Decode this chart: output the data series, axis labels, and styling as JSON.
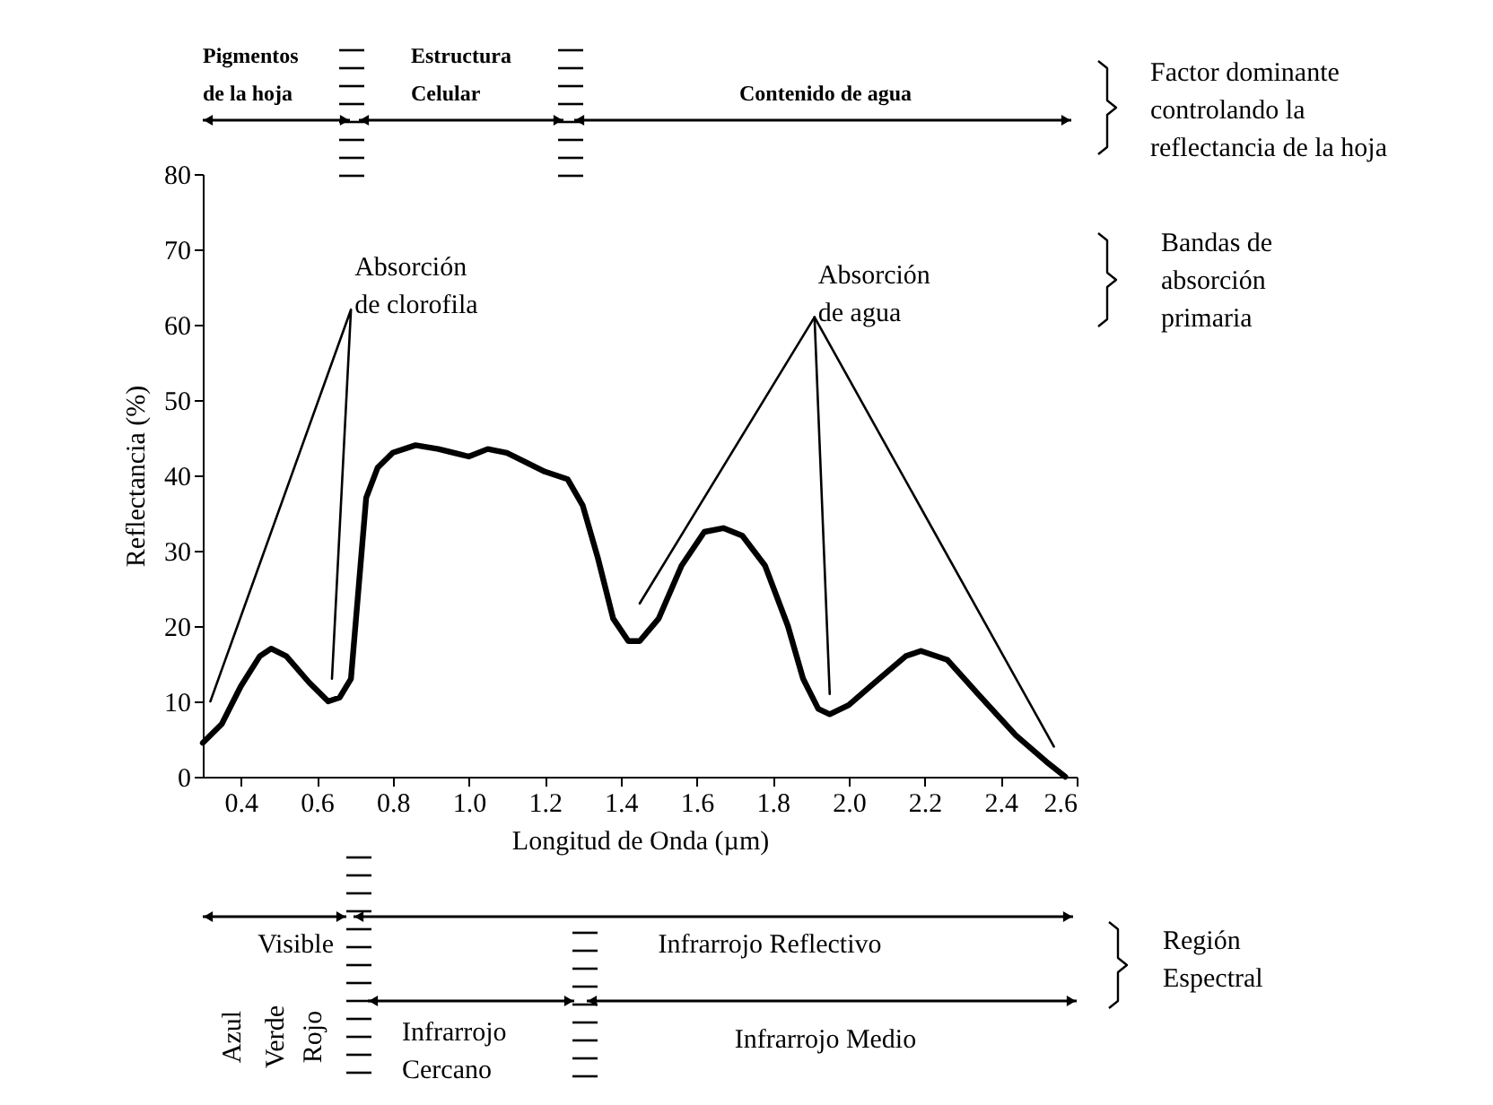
{
  "chart_data": {
    "type": "line",
    "xlabel": "Longitud de Onda (µm)",
    "ylabel": "Reflectancia (%)",
    "xlim": [
      0.3,
      2.6
    ],
    "xticks": [
      0.4,
      0.6,
      0.8,
      {
        "value": 1,
        "label": "1.0"
      },
      1.2,
      1.4,
      1.6,
      1.8,
      {
        "value": 2,
        "label": "2.0"
      },
      2.2,
      2.4,
      2.6
    ],
    "ylim": [
      0,
      80
    ],
    "yticks": [
      0,
      10,
      20,
      30,
      40,
      50,
      60,
      70,
      80
    ],
    "grid": false,
    "series": [
      {
        "color": "#000000",
        "x": [
          0.3,
          0.35,
          0.4,
          0.45,
          0.48,
          0.52,
          0.58,
          0.63,
          0.66,
          0.69,
          0.71,
          0.73,
          0.76,
          0.8,
          0.86,
          0.92,
          1.0,
          1.05,
          1.1,
          1.2,
          1.26,
          1.3,
          1.34,
          1.38,
          1.42,
          1.45,
          1.5,
          1.56,
          1.62,
          1.67,
          1.72,
          1.78,
          1.84,
          1.88,
          1.92,
          1.95,
          2.0,
          2.08,
          2.15,
          2.19,
          2.26,
          2.34,
          2.44,
          2.52,
          2.57
        ],
        "values": [
          4.5,
          7,
          12,
          16,
          17,
          16,
          12.5,
          10,
          10.5,
          13,
          25,
          37,
          41,
          43,
          44,
          43.5,
          42.5,
          43.5,
          43,
          40.5,
          39.5,
          36,
          29,
          21,
          18,
          18,
          21,
          28,
          32.5,
          33,
          32,
          28,
          20,
          13,
          9,
          8.3,
          9.5,
          13,
          16,
          16.7,
          15.5,
          11,
          5.5,
          2,
          0
        ]
      },
      {
        "color": "#000000",
        "x": [
          0.32,
          0.69,
          0.64
        ],
        "values": [
          10,
          62,
          13
        ]
      },
      {
        "color": "#000000",
        "x": [
          1.45,
          1.91,
          2.54
        ],
        "values": [
          23,
          61,
          4
        ]
      },
      {
        "color": "#000000",
        "x": [
          1.91,
          1.95
        ],
        "values": [
          61,
          11
        ]
      }
    ],
    "annotations": [
      {
        "text": "Absorción\nde clorofila",
        "x": 0.69,
        "y": 62
      },
      {
        "text": "Absorción\nde agua",
        "x": 1.91,
        "y": 61
      },
      "Pigmentos\nde la hoja",
      "Estructura\nCelular",
      "Contenido de agua",
      "Factor dominante\ncontrolando la\nreflectancia de la hoja",
      "Bandas de\nabsorción\nprimaria",
      "Visible",
      "Infrarrojo Reflectivo",
      "Región\nEspectral",
      "Azul",
      "Verde",
      "Rojo",
      "Infrarrojo\nCercano",
      "Infrarrojo Medio"
    ]
  }
}
